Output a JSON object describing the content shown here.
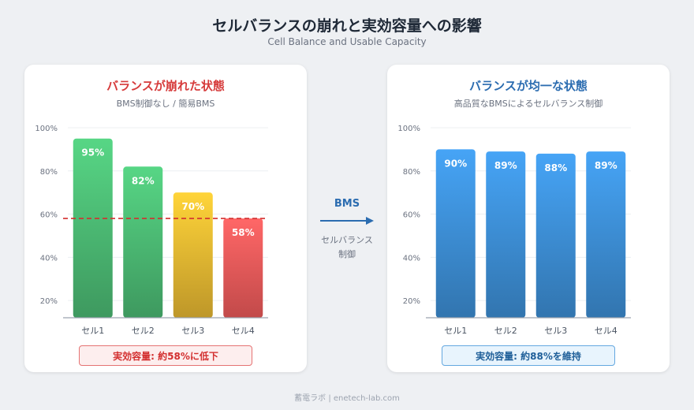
{
  "header": {
    "title": "セルバランスの崩れと実効容量への影響",
    "subtitle": "Cell Balance and Usable Capacity"
  },
  "colors": {
    "green": "#4cba74",
    "yellow": "#e8b832",
    "red": "#ec5a5a",
    "blue": "#3d8fd6",
    "dashed_line": "#d32f2f"
  },
  "left_panel": {
    "title": "バランスが崩れた状態",
    "subtitle": "BMS制御なし / 簡易BMS",
    "result": "実効容量: 約58%に低下"
  },
  "arrow": {
    "label": "BMS",
    "desc_line1": "セルバランス",
    "desc_line2": "制御"
  },
  "right_panel": {
    "title": "バランスが均一な状態",
    "subtitle": "高品質なBMSによるセルバランス制御",
    "result": "実効容量: 約88%を維持"
  },
  "chart_data": [
    {
      "type": "bar",
      "categories": [
        "セル1",
        "セル2",
        "セル3",
        "セル4"
      ],
      "values": [
        95,
        82,
        70,
        58
      ],
      "value_labels": [
        "95%",
        "82%",
        "70%",
        "58%"
      ],
      "bar_colors": [
        "green",
        "green",
        "yellow",
        "red"
      ],
      "yticks": [
        20,
        40,
        60,
        80,
        100
      ],
      "ytick_labels": [
        "20%",
        "40%",
        "60%",
        "80%",
        "100%"
      ],
      "ylim": [
        12,
        100
      ],
      "reference_line": 58,
      "title": "バランスが崩れた状態"
    },
    {
      "type": "bar",
      "categories": [
        "セル1",
        "セル2",
        "セル3",
        "セル4"
      ],
      "values": [
        90,
        89,
        88,
        89
      ],
      "value_labels": [
        "90%",
        "89%",
        "88%",
        "89%"
      ],
      "bar_colors": [
        "blue",
        "blue",
        "blue",
        "blue"
      ],
      "yticks": [
        20,
        40,
        60,
        80,
        100
      ],
      "ytick_labels": [
        "20%",
        "40%",
        "60%",
        "80%",
        "100%"
      ],
      "ylim": [
        12,
        100
      ],
      "title": "バランスが均一な状態"
    }
  ],
  "footer": "蓄電ラボ | enetech-lab.com"
}
